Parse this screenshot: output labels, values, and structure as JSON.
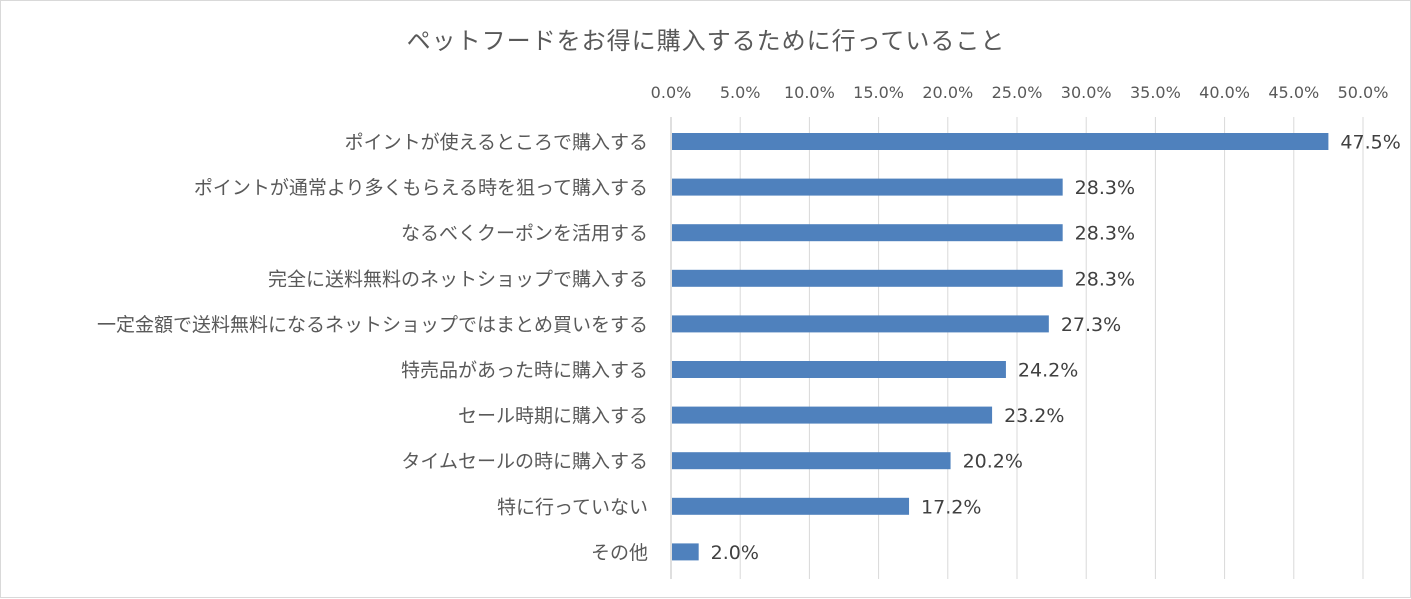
{
  "chart_data": {
    "type": "bar",
    "orientation": "horizontal",
    "title": "ペットフードをお得に購入するために行っていること",
    "xlabel": "",
    "ylabel": "",
    "xlim": [
      0,
      50
    ],
    "tick_values": [
      0,
      5,
      10,
      15,
      20,
      25,
      30,
      35,
      40,
      45,
      50
    ],
    "tick_labels": [
      "0.0%",
      "5.0%",
      "10.0%",
      "15.0%",
      "20.0%",
      "25.0%",
      "30.0%",
      "35.0%",
      "40.0%",
      "45.0%",
      "50.0%"
    ],
    "axis_position": "top",
    "grid": true,
    "legend": "none",
    "bar_color": "#4f81bd",
    "categories": [
      "ポイントが使えるところで購入する",
      "ポイントが通常より多くもらえる時を狙って購入する",
      "なるべくクーポンを活用する",
      "完全に送料無料のネットショップで購入する",
      "一定金額で送料無料になるネットショップではまとめ買いをする",
      "特売品があった時に購入する",
      "セール時期に購入する",
      "タイムセールの時に購入する",
      "特に行っていない",
      "その他"
    ],
    "values": [
      47.5,
      28.3,
      28.3,
      28.3,
      27.3,
      24.2,
      23.2,
      20.2,
      17.2,
      2.0
    ],
    "data_labels": [
      "47.5%",
      "28.3%",
      "28.3%",
      "28.3%",
      "27.3%",
      "24.2%",
      "23.2%",
      "20.2%",
      "17.2%",
      "2.0%"
    ]
  }
}
